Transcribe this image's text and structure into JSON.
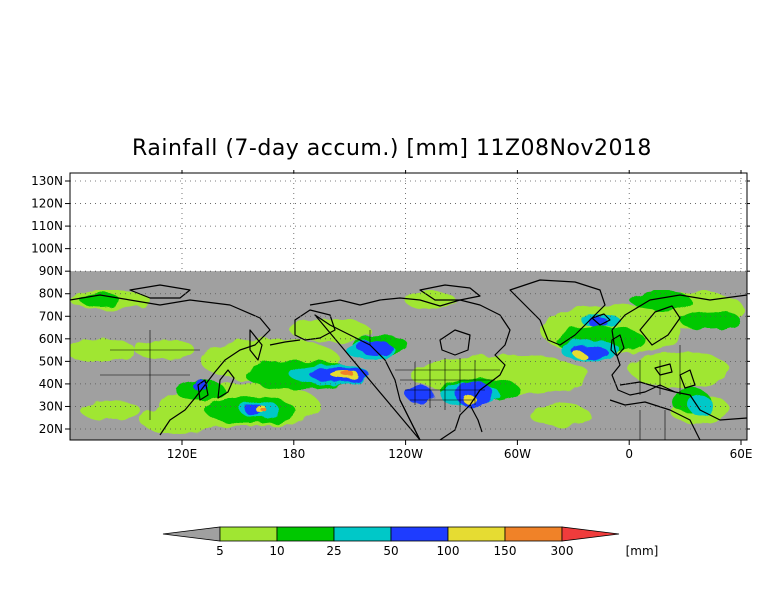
{
  "title": "Rainfall (7-day accum.) [mm] 11Z08Nov2018",
  "lat_labels": [
    "130N",
    "120N",
    "110N",
    "100N",
    "90N",
    "80N",
    "70N",
    "60N",
    "50N",
    "40N",
    "30N",
    "20N"
  ],
  "lon_labels": [
    "120E",
    "180",
    "120W",
    "60W",
    "0",
    "60E"
  ],
  "lat_values": [
    130,
    120,
    110,
    100,
    90,
    80,
    70,
    60,
    50,
    40,
    30,
    20
  ],
  "lon_values": [
    120,
    180,
    240,
    300,
    360,
    420
  ],
  "colorbar": {
    "levels": [
      "5",
      "10",
      "25",
      "50",
      "100",
      "150",
      "300"
    ],
    "unit": "[mm]",
    "colors": [
      "#a0a0a0",
      "#a0e632",
      "#00c800",
      "#00c8c8",
      "#1e3cff",
      "#e6dc32",
      "#f08228",
      "#f03c3c"
    ]
  },
  "colors": {
    "no_data": "#a0a0a0",
    "land_outline": "#000000"
  }
}
